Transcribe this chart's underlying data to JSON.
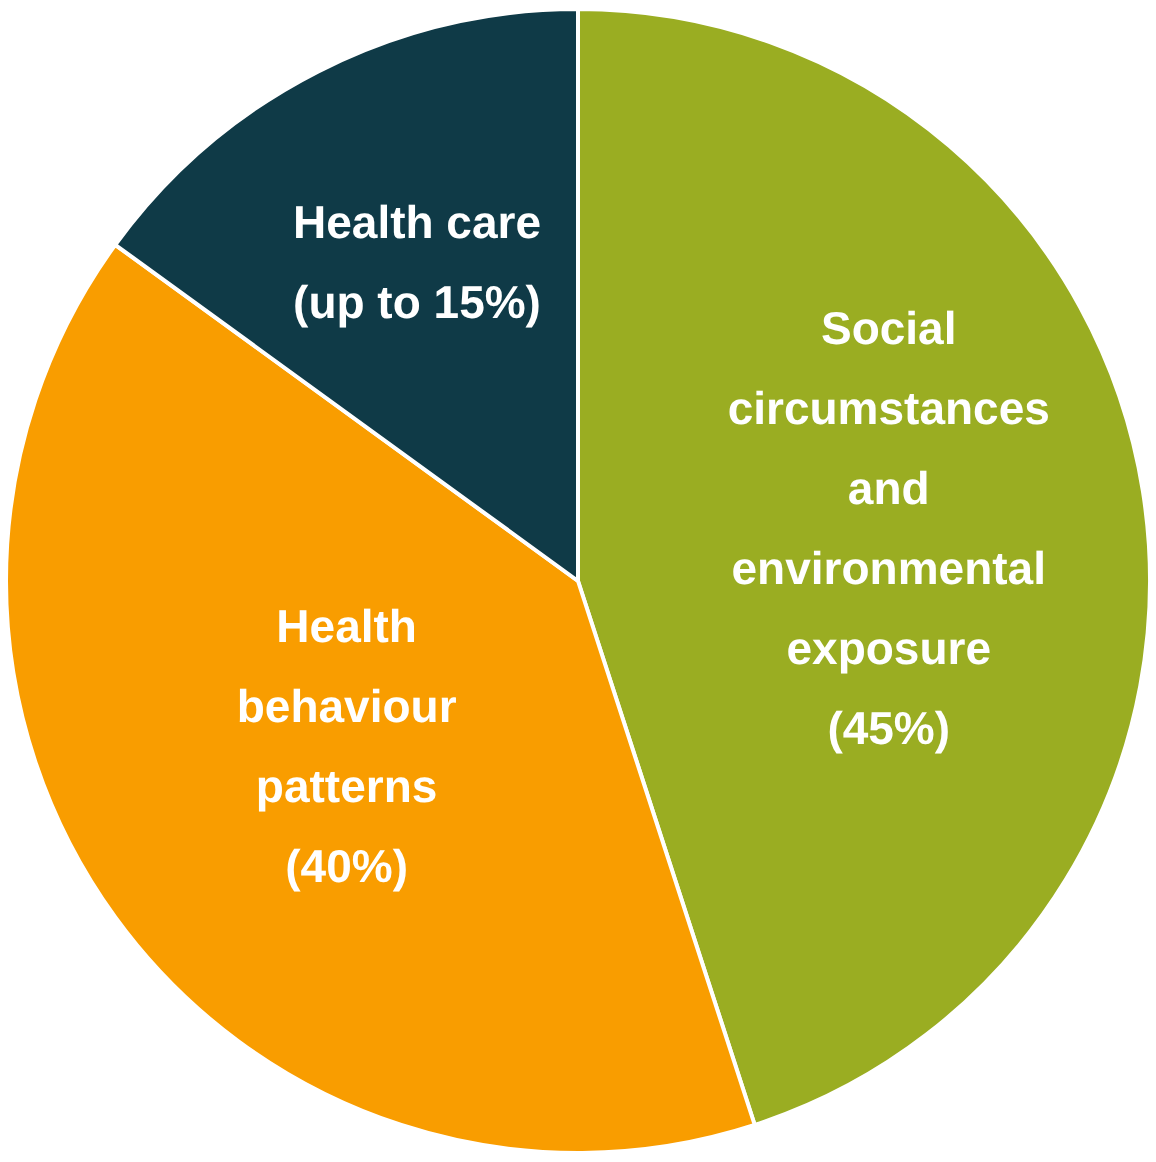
{
  "chart_data": {
    "type": "pie",
    "categories": [
      "Social circumstances and environmental exposure",
      "Health behaviour patterns",
      "Health care"
    ],
    "values": [
      45,
      40,
      15
    ],
    "value_labels": [
      "(45%)",
      "(40%)",
      "(up to 15%)"
    ],
    "colors": [
      "#9aad22",
      "#f99d00",
      "#0f3a47"
    ],
    "legend": false
  }
}
